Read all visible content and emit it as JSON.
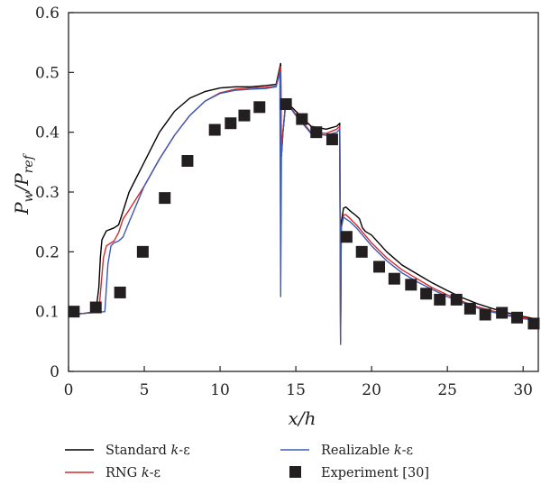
{
  "chart_data": {
    "type": "line",
    "xlabel": "x/h",
    "ylabel": "Pw/Pref",
    "ylabel_parts": {
      "base": "P",
      "sub1": "w",
      "slash": "/P",
      "sub2": "ref"
    },
    "xlim": [
      0,
      31
    ],
    "ylim": [
      0,
      0.6
    ],
    "xticks": [
      "0",
      "5",
      "10",
      "15",
      "20",
      "25",
      "30"
    ],
    "yticks": [
      "0",
      "0.1",
      "0.2",
      "0.3",
      "0.4",
      "0.5",
      "0.6"
    ],
    "grid": false,
    "legend_placement": "bottom",
    "series": [
      {
        "name": "Standard k-ε",
        "name_parts": [
          "Standard ",
          "k",
          "-ε"
        ],
        "kind": "line",
        "color": "#000000",
        "x": [
          0,
          1,
          1.8,
          2.0,
          2.1,
          2.2,
          2.5,
          3.0,
          3.3,
          3.5,
          4.0,
          5.0,
          6.0,
          7.0,
          8.0,
          9.0,
          10.0,
          11.0,
          12.0,
          13.0,
          13.7,
          14.0,
          14.05,
          14.15,
          14.3,
          14.6,
          15.0,
          16.0,
          17.0,
          17.7,
          17.9,
          17.95,
          18.0,
          18.15,
          18.3,
          18.6,
          19.0,
          19.2,
          19.4,
          19.6,
          20.0,
          21.0,
          22.0,
          23.0,
          24.0,
          25.0,
          26.0,
          27.0,
          28.0,
          29.0,
          30.0,
          31.0
        ],
        "y": [
          0.095,
          0.097,
          0.1,
          0.14,
          0.19,
          0.22,
          0.235,
          0.24,
          0.245,
          0.26,
          0.3,
          0.35,
          0.4,
          0.435,
          0.457,
          0.468,
          0.474,
          0.476,
          0.476,
          0.478,
          0.48,
          0.515,
          0.36,
          0.4,
          0.44,
          0.445,
          0.435,
          0.41,
          0.405,
          0.41,
          0.415,
          0.05,
          0.25,
          0.273,
          0.275,
          0.268,
          0.26,
          0.255,
          0.24,
          0.234,
          0.228,
          0.2,
          0.178,
          0.163,
          0.148,
          0.135,
          0.123,
          0.113,
          0.105,
          0.098,
          0.092,
          0.087
        ]
      },
      {
        "name": "RNG k-ε",
        "name_parts": [
          "RNG ",
          "k",
          "-ε"
        ],
        "kind": "line",
        "color": "#d42a2a",
        "x": [
          0,
          1,
          2.0,
          2.3,
          2.5,
          2.8,
          3.0,
          3.3,
          3.6,
          4.0,
          4.5,
          5.0,
          6.0,
          7.0,
          8.0,
          9.0,
          10.0,
          11.0,
          12.0,
          13.0,
          13.7,
          14.0,
          14.05,
          14.15,
          14.3,
          14.6,
          15.0,
          16.0,
          17.0,
          17.7,
          17.9,
          17.95,
          18.0,
          18.15,
          18.3,
          18.6,
          19.0,
          20.0,
          21.0,
          22.0,
          23.0,
          24.0,
          25.0,
          26.0,
          27.0,
          28.0,
          29.0,
          30.0,
          31.0
        ],
        "y": [
          0.095,
          0.097,
          0.1,
          0.19,
          0.21,
          0.215,
          0.218,
          0.232,
          0.255,
          0.27,
          0.29,
          0.31,
          0.355,
          0.395,
          0.428,
          0.452,
          0.466,
          0.472,
          0.474,
          0.475,
          0.477,
          0.51,
          0.36,
          0.4,
          0.44,
          0.443,
          0.43,
          0.4,
          0.398,
          0.405,
          0.41,
          0.05,
          0.24,
          0.262,
          0.262,
          0.255,
          0.245,
          0.215,
          0.19,
          0.17,
          0.155,
          0.14,
          0.128,
          0.117,
          0.108,
          0.101,
          0.095,
          0.09,
          0.086
        ]
      },
      {
        "name": "Realizable k-ε",
        "name_parts": [
          "Realizable ",
          "k",
          "-ε"
        ],
        "kind": "line",
        "color": "#3b5bb5",
        "x": [
          0,
          1,
          2.4,
          2.6,
          2.8,
          3.0,
          3.3,
          3.6,
          4.0,
          4.5,
          5.0,
          6.0,
          7.0,
          8.0,
          9.0,
          10.0,
          11.0,
          12.0,
          13.0,
          13.7,
          13.95,
          14.0,
          14.05,
          14.15,
          14.3,
          14.6,
          15.0,
          16.0,
          17.0,
          17.7,
          17.9,
          17.95,
          18.0,
          18.15,
          18.3,
          18.6,
          19.0,
          20.0,
          21.0,
          22.0,
          23.0,
          24.0,
          25.0,
          26.0,
          27.0,
          28.0,
          29.0,
          30.0,
          31.0
        ],
        "y": [
          0.095,
          0.097,
          0.1,
          0.18,
          0.21,
          0.215,
          0.218,
          0.225,
          0.25,
          0.28,
          0.31,
          0.355,
          0.395,
          0.428,
          0.452,
          0.465,
          0.47,
          0.472,
          0.473,
          0.476,
          0.5,
          0.125,
          0.36,
          0.4,
          0.44,
          0.442,
          0.428,
          0.398,
          0.395,
          0.4,
          0.405,
          0.045,
          0.24,
          0.258,
          0.255,
          0.25,
          0.24,
          0.21,
          0.185,
          0.165,
          0.15,
          0.137,
          0.125,
          0.115,
          0.106,
          0.099,
          0.093,
          0.088,
          0.085
        ]
      },
      {
        "name": "Experiment [30]",
        "name_parts": [
          "Experiment [30]"
        ],
        "kind": "marker",
        "color": "#231f20",
        "x": [
          0.35,
          1.8,
          3.4,
          4.9,
          6.35,
          7.85,
          9.65,
          10.7,
          11.6,
          12.6,
          14.35,
          15.4,
          16.35,
          17.4,
          18.35,
          19.35,
          20.5,
          21.5,
          22.6,
          23.6,
          24.5,
          25.6,
          26.5,
          27.5,
          28.6,
          29.6,
          30.7
        ],
        "y": [
          0.1,
          0.107,
          0.132,
          0.2,
          0.29,
          0.352,
          0.404,
          0.415,
          0.428,
          0.442,
          0.447,
          0.422,
          0.4,
          0.388,
          0.225,
          0.2,
          0.175,
          0.155,
          0.145,
          0.13,
          0.12,
          0.12,
          0.105,
          0.095,
          0.098,
          0.09,
          0.08
        ]
      }
    ]
  }
}
